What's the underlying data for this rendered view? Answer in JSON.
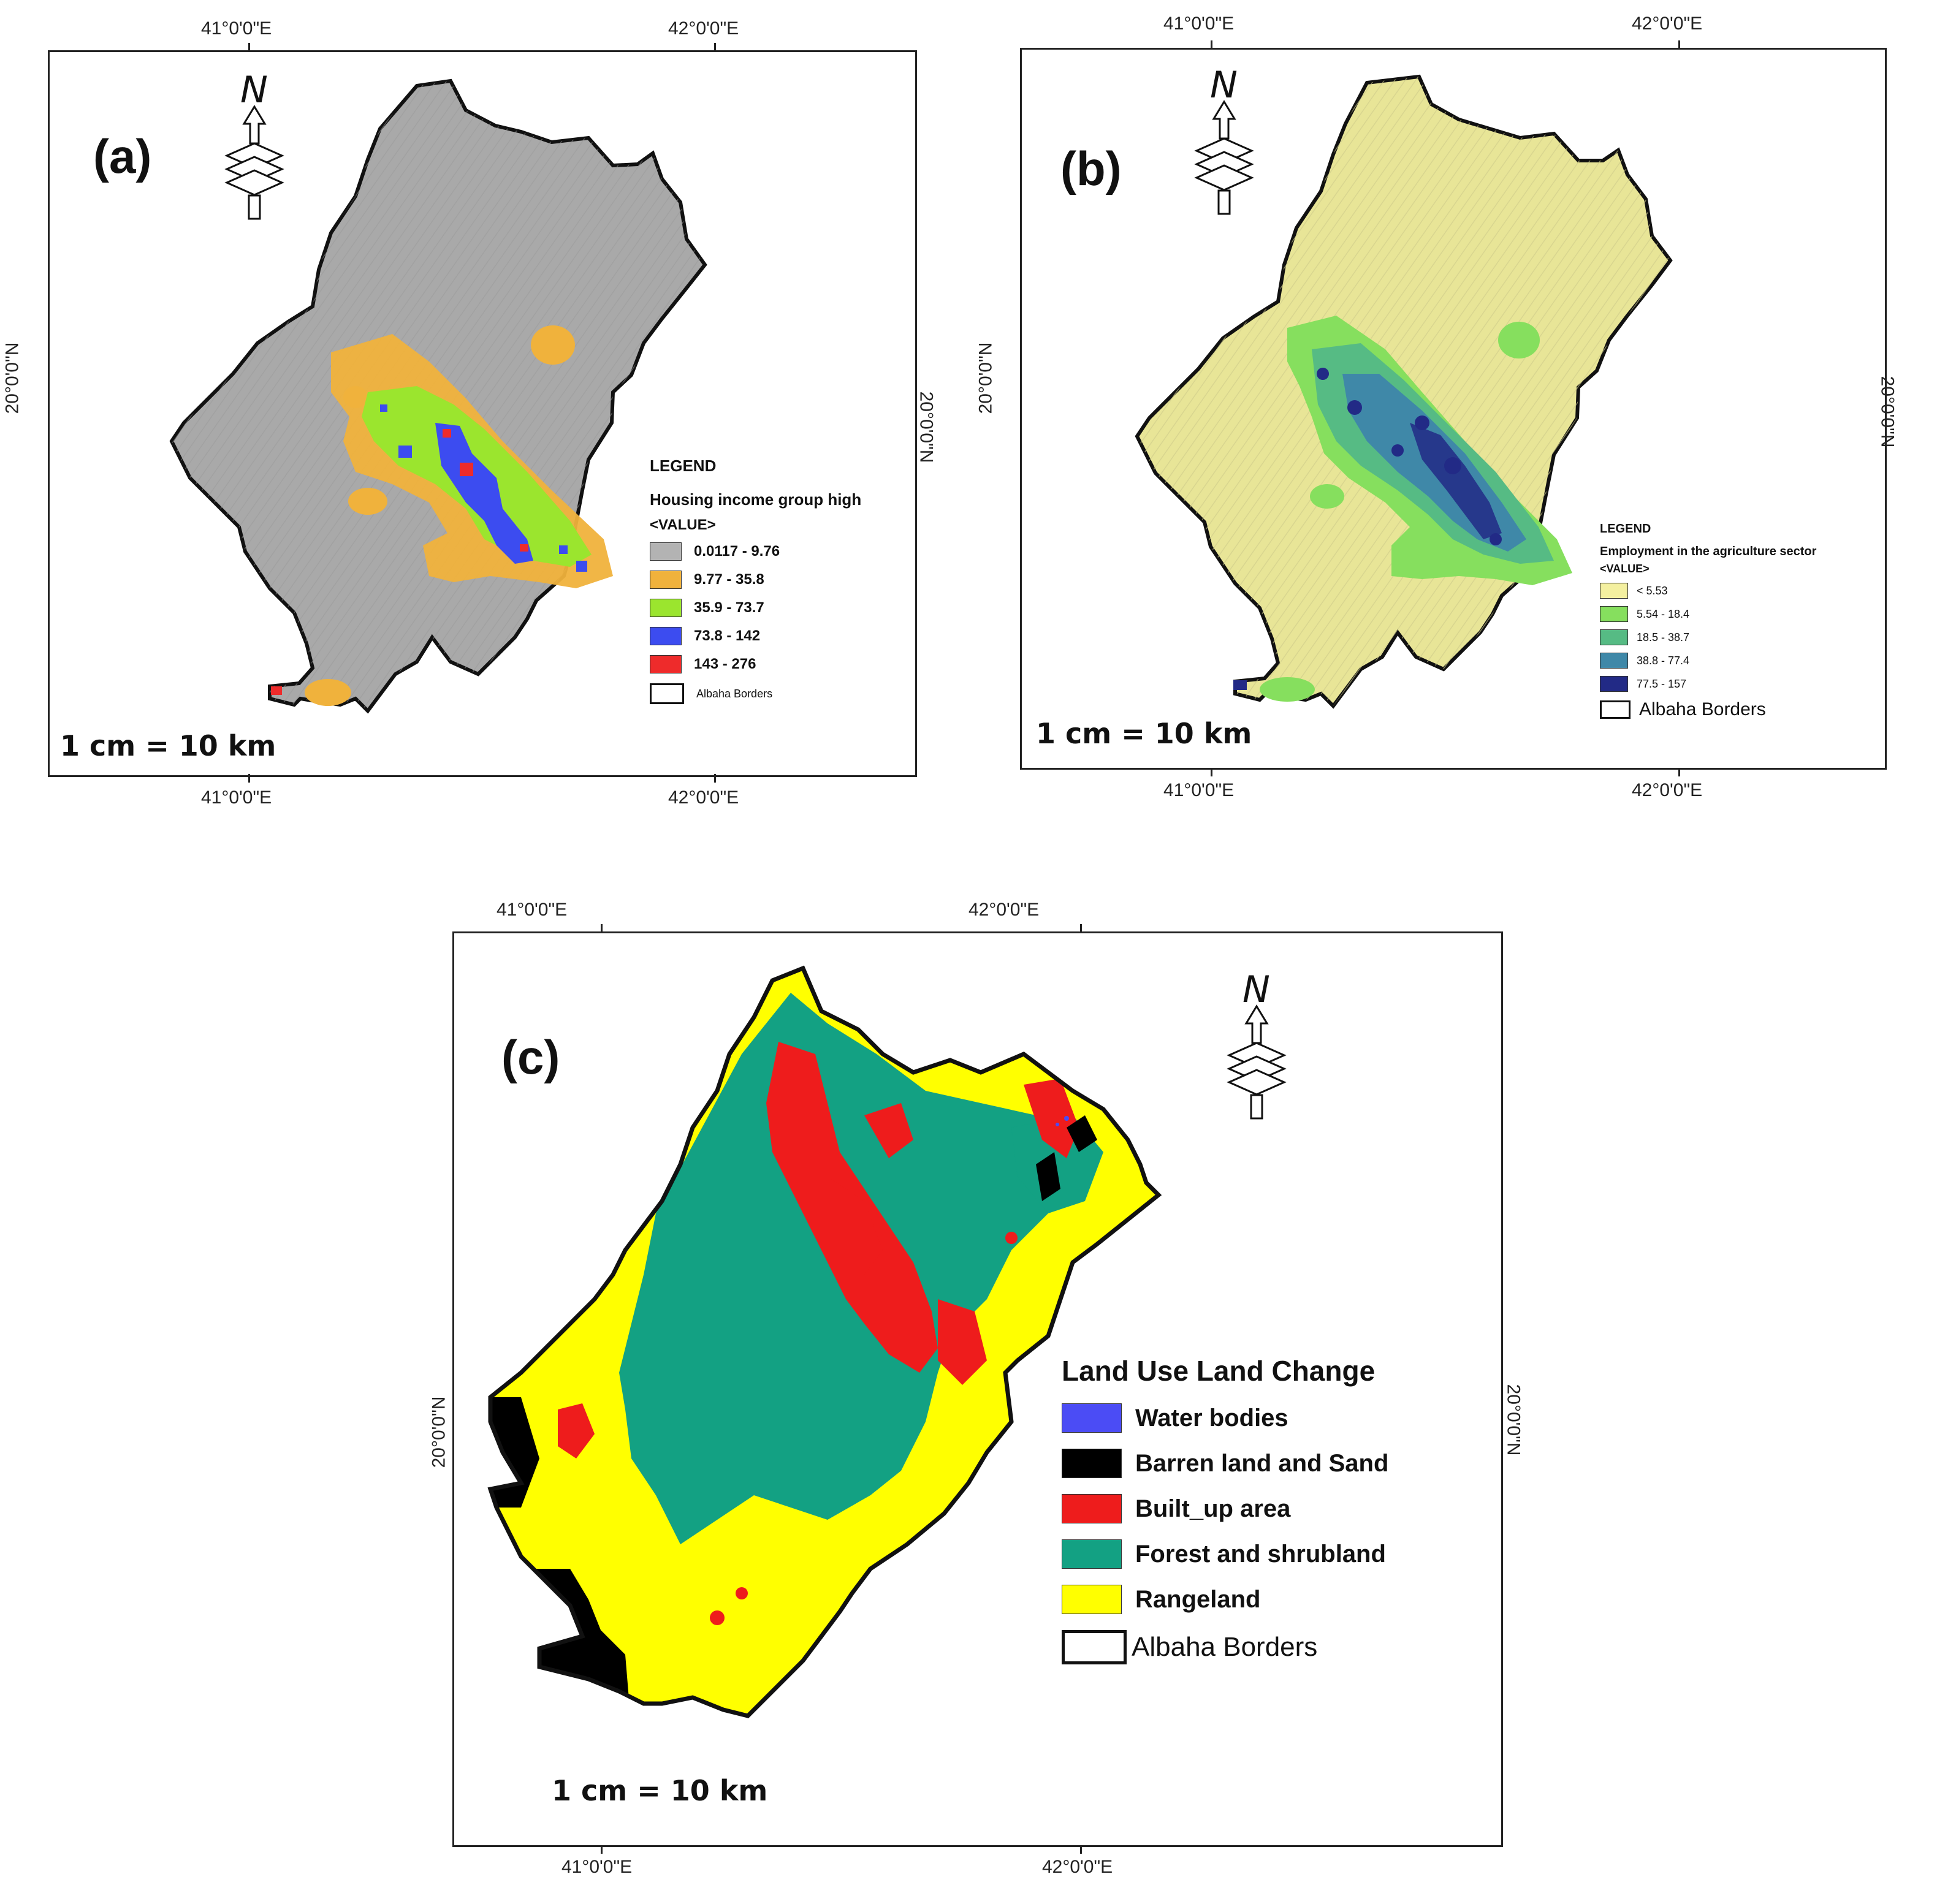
{
  "coords": {
    "lon_41": "41°0'0\"E",
    "lon_42": "42°0'0\"E",
    "lat_20": "20°0'0\"N"
  },
  "north_arrow": {
    "letter": "N",
    "icon": "north-arrow-icon"
  },
  "panel_a": {
    "label": "(a)",
    "scale": "1 cm = 10 km",
    "legend": {
      "heading": "LEGEND",
      "title": "Housing income group high",
      "value_label": "<VALUE>",
      "classes": [
        {
          "label": "0.0117 - 9.76",
          "color": "#b3b3b3"
        },
        {
          "label": "9.77 - 35.8",
          "color": "#f0b23c"
        },
        {
          "label": "35.9 - 73.7",
          "color": "#9be52e"
        },
        {
          "label": "73.8 - 142",
          "color": "#3c4cf0"
        },
        {
          "label": "143 - 276",
          "color": "#ee2b2b"
        }
      ],
      "border_label": "Albaha Borders"
    }
  },
  "panel_b": {
    "label": "(b)",
    "scale": "1 cm = 10 km",
    "legend": {
      "heading": "LEGEND",
      "title": "Employment in the agriculture sector",
      "value_label": "<VALUE>",
      "classes": [
        {
          "label": "< 5.53",
          "color": "#f4f0a0"
        },
        {
          "label": "5.54 - 18.4",
          "color": "#86df5e"
        },
        {
          "label": "18.5 - 38.7",
          "color": "#56bb84"
        },
        {
          "label": "38.8 - 77.4",
          "color": "#3f88a8"
        },
        {
          "label": "77.5 - 157",
          "color": "#222a86"
        }
      ],
      "border_label": "Albaha Borders"
    }
  },
  "panel_c": {
    "label": "(c)",
    "scale": "1 cm = 10 km",
    "legend": {
      "title": "Land Use Land Change",
      "classes": [
        {
          "label": "Water bodies",
          "color": "#4b4cf5"
        },
        {
          "label": "Barren land and Sand",
          "color": "#000000"
        },
        {
          "label": "Built_up area",
          "color": "#ee1c1c"
        },
        {
          "label": "Forest and shrubland",
          "color": "#13a183"
        },
        {
          "label": "Rangeland",
          "color": "#ffff00"
        }
      ],
      "border_label": "Albaha Borders"
    }
  }
}
